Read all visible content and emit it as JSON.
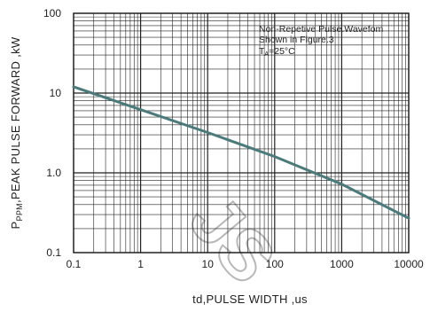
{
  "chart_data": {
    "type": "line",
    "xlabel": "td,PULSE WIDTH ,us",
    "ylabel_main": "P",
    "ylabel_sub": "PPM",
    "ylabel_rest": ",PEAK PULSE  FORWARD ,kW",
    "xscale": "log",
    "yscale": "log",
    "xlim": [
      0.1,
      10000
    ],
    "ylim": [
      0.1,
      100
    ],
    "x_ticks": [
      "0.1",
      "1",
      "10",
      "100",
      "1000",
      "10000"
    ],
    "y_ticks": [
      "0.1",
      "1.0",
      "10",
      "100"
    ],
    "grid": true,
    "annotation": {
      "line1": "Non-Repetive  Pulse.Wavefom",
      "line2": "Shown in Figure.3",
      "line3_main": "T",
      "line3_sub": "A",
      "line3_rest": "=25°C"
    },
    "series": [
      {
        "x": [
          0.1,
          1,
          10,
          100,
          1000,
          10000
        ],
        "y": [
          12,
          6.2,
          3.2,
          1.6,
          0.72,
          0.27
        ]
      }
    ],
    "line_color": "#4a7a7a",
    "watermark": "JS"
  }
}
